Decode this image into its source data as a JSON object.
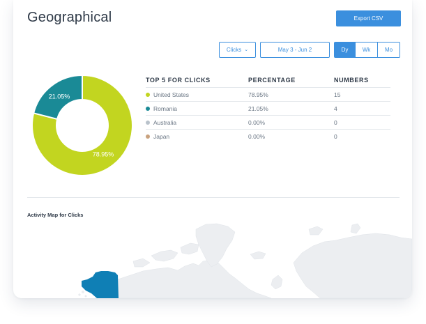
{
  "header": {
    "title": "Geographical",
    "export_label": "Export CSV"
  },
  "filters": {
    "metric": "Clicks",
    "date_range": "May 3 - Jun 2",
    "granularity": [
      {
        "label": "Dy",
        "active": true
      },
      {
        "label": "Wk",
        "active": false
      },
      {
        "label": "Mo",
        "active": false
      }
    ]
  },
  "chart_data": {
    "type": "pie",
    "donut": true,
    "categories": [
      "United States",
      "Romania",
      "Australia",
      "Japan"
    ],
    "values": [
      78.95,
      21.05,
      0.0,
      0.0
    ],
    "data_labels": [
      "78.95%",
      "21.05%",
      "",
      ""
    ],
    "colors": [
      "#c2d520",
      "#1a8a96",
      "#b9c2cb",
      "#c9a27e"
    ]
  },
  "top5": {
    "headers": [
      "TOP 5 FOR CLICKS",
      "PERCENTAGE",
      "NUMBERS"
    ],
    "rows": [
      {
        "country": "United States",
        "percentage": "78.95%",
        "number": "15",
        "color": "#c2d520"
      },
      {
        "country": "Romania",
        "percentage": "21.05%",
        "number": "4",
        "color": "#1a8a96"
      },
      {
        "country": "Australia",
        "percentage": "0.00%",
        "number": "0",
        "color": "#b9c2cb"
      },
      {
        "country": "Japan",
        "percentage": "0.00%",
        "number": "0",
        "color": "#c9a27e"
      }
    ]
  },
  "map": {
    "title": "Activity Map for Clicks",
    "highlight_color": "#0f7fb5",
    "land_color": "#eceef1"
  }
}
